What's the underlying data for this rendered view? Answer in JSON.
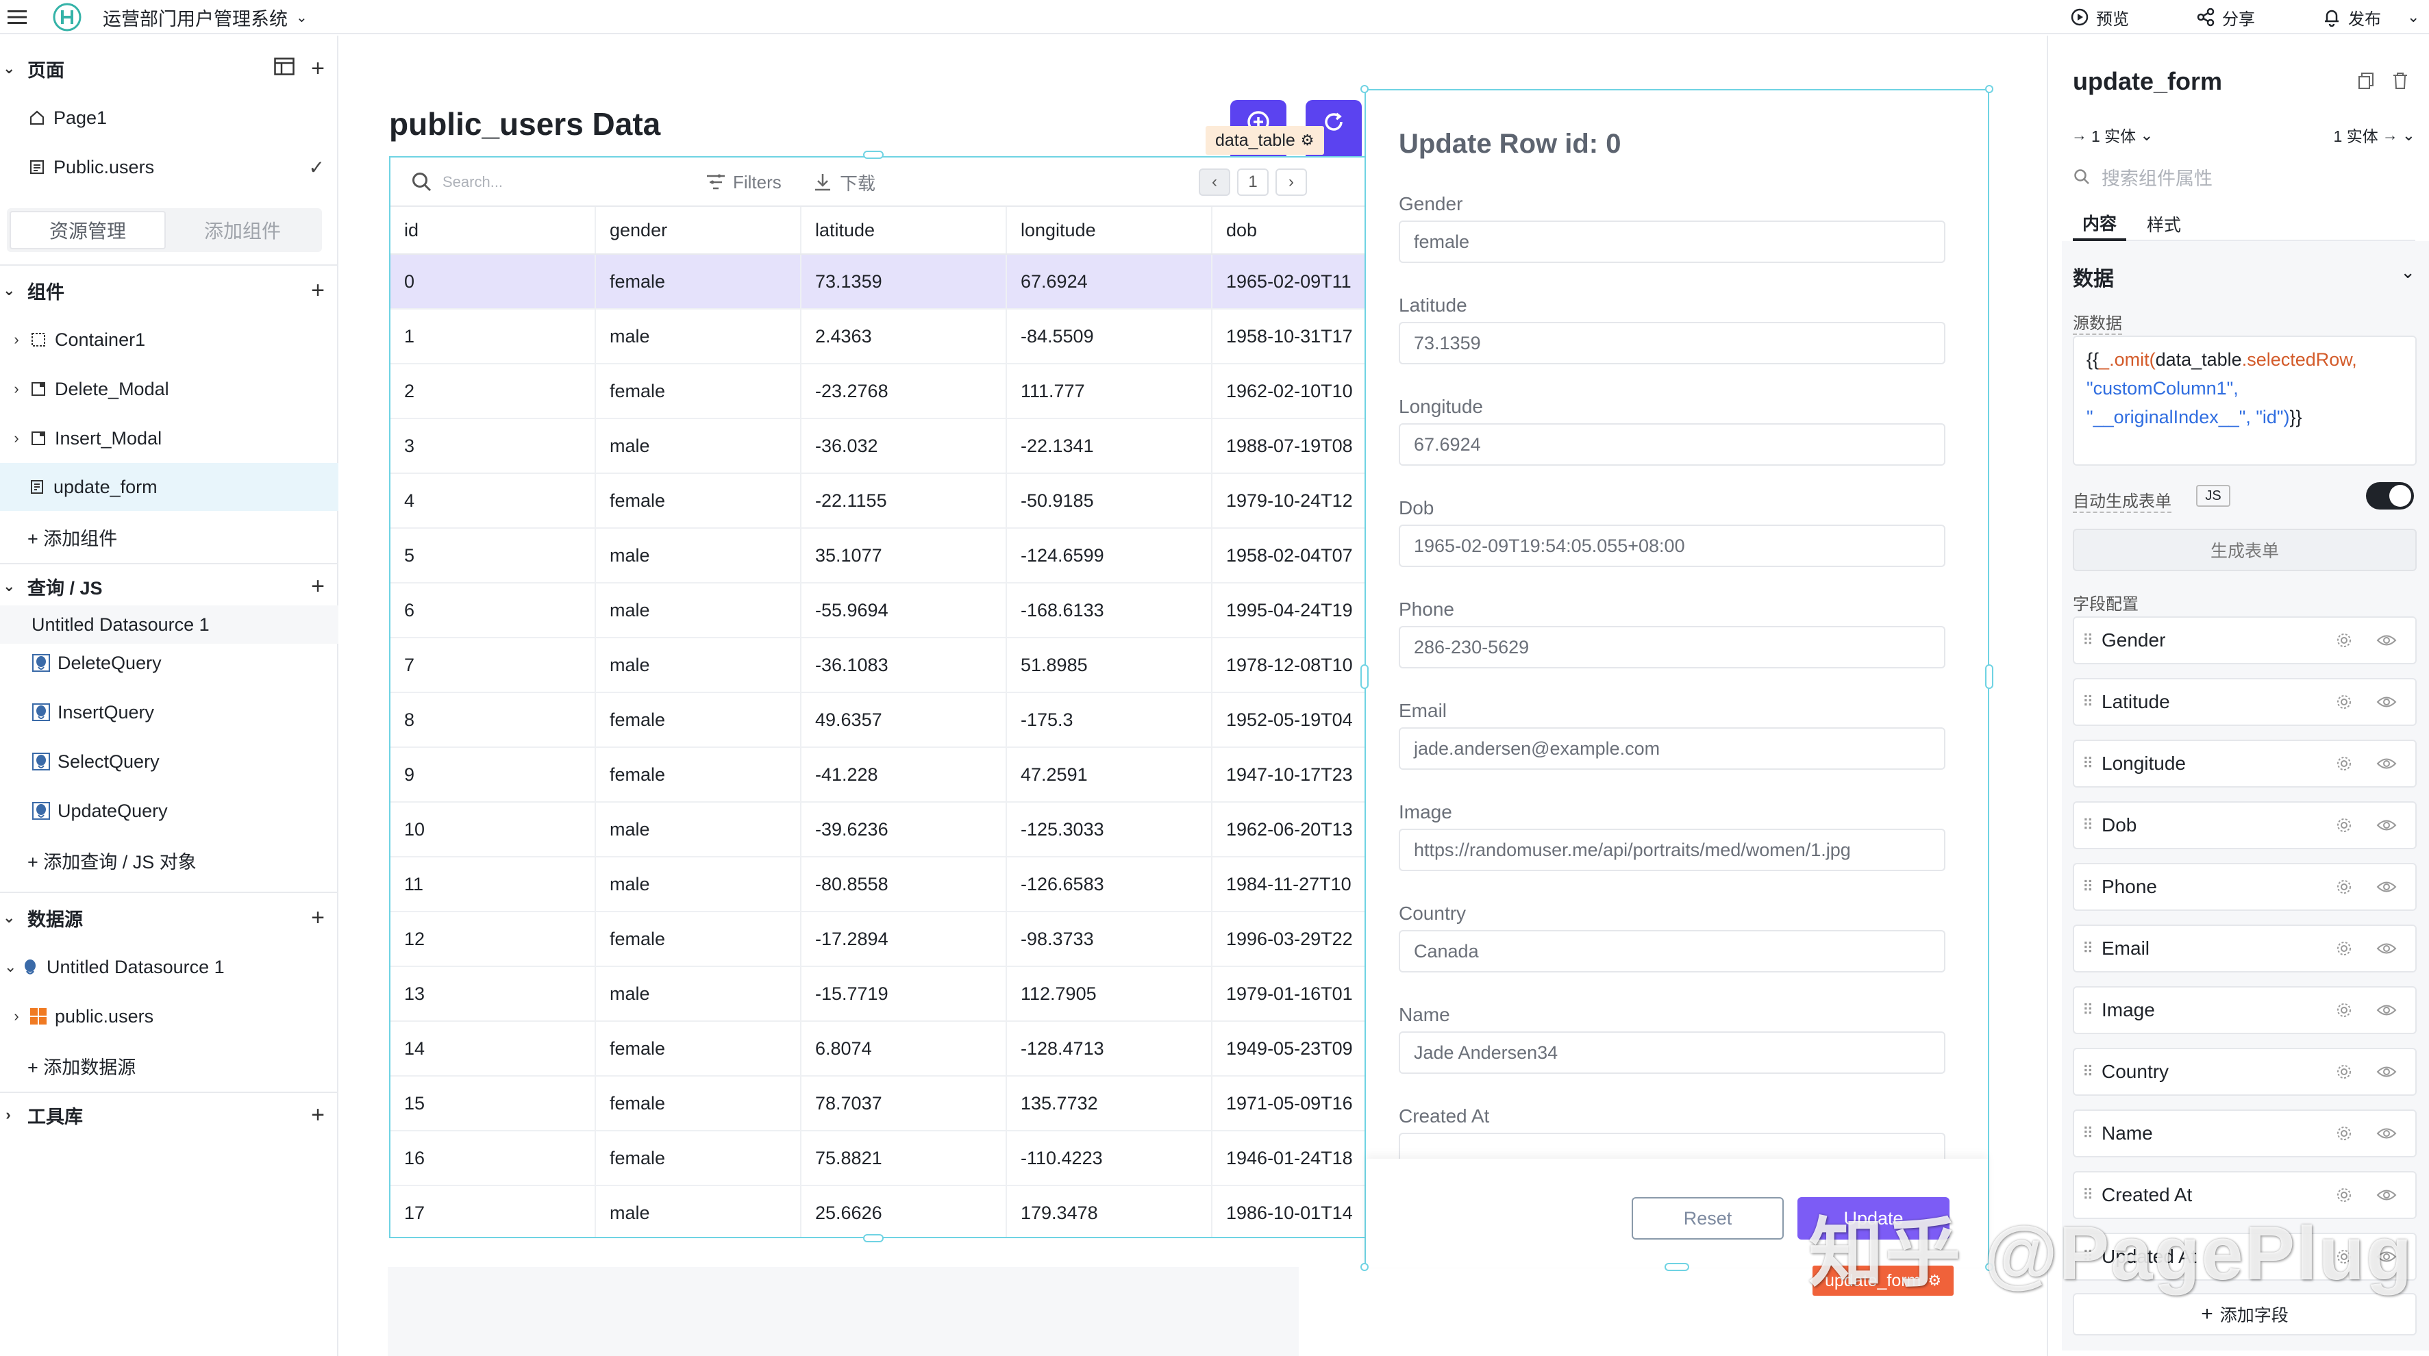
{
  "topbar": {
    "app_title": "运营部门用户管理系统",
    "preview_label": "预览",
    "share_label": "分享",
    "publish_label": "发布"
  },
  "left_panel": {
    "pages_section": "页面",
    "pages": [
      {
        "label": "Page1",
        "icon": "home-icon"
      },
      {
        "label": "Public.users",
        "icon": "table-icon"
      }
    ],
    "tabs": [
      "资源管理",
      "添加组件"
    ],
    "components_section": "组件",
    "components": [
      {
        "label": "Container1",
        "icon": "container-icon"
      },
      {
        "label": "Delete_Modal",
        "icon": "modal-icon"
      },
      {
        "label": "Insert_Modal",
        "icon": "modal-icon"
      },
      {
        "label": "update_form",
        "icon": "form-icon"
      }
    ],
    "add_component": "+ 添加组件",
    "query_section": "查询 / JS",
    "query_group": "Untitled Datasource 1",
    "queries": [
      "DeleteQuery",
      "InsertQuery",
      "SelectQuery",
      "UpdateQuery"
    ],
    "add_query": "+ 添加查询 / JS 对象",
    "datasource_section": "数据源",
    "datasource_name": "Untitled Datasource 1",
    "datasource_table": "public.users",
    "add_datasource": "+ 添加数据源",
    "library_section": "工具库"
  },
  "table": {
    "title": "public_users Data",
    "selection_tag": "data_table",
    "search_placeholder": "Search...",
    "filters_label": "Filters",
    "download_label": "下载",
    "page_number": "1",
    "columns": [
      "id",
      "gender",
      "latitude",
      "longitude",
      "dob"
    ],
    "rows": [
      [
        "0",
        "female",
        "73.1359",
        "67.6924",
        "1965-02-09T11"
      ],
      [
        "1",
        "male",
        "2.4363",
        "-84.5509",
        "1958-10-31T17"
      ],
      [
        "2",
        "female",
        "-23.2768",
        "111.777",
        "1962-02-10T10"
      ],
      [
        "3",
        "male",
        "-36.032",
        "-22.1341",
        "1988-07-19T08"
      ],
      [
        "4",
        "female",
        "-22.1155",
        "-50.9185",
        "1979-10-24T12"
      ],
      [
        "5",
        "male",
        "35.1077",
        "-124.6599",
        "1958-02-04T07"
      ],
      [
        "6",
        "male",
        "-55.9694",
        "-168.6133",
        "1995-04-24T19"
      ],
      [
        "7",
        "male",
        "-36.1083",
        "51.8985",
        "1978-12-08T10"
      ],
      [
        "8",
        "female",
        "49.6357",
        "-175.3",
        "1952-05-19T04"
      ],
      [
        "9",
        "female",
        "-41.228",
        "47.2591",
        "1947-10-17T23"
      ],
      [
        "10",
        "male",
        "-39.6236",
        "-125.3033",
        "1962-06-20T13"
      ],
      [
        "11",
        "male",
        "-80.8558",
        "-126.6583",
        "1984-11-27T10"
      ],
      [
        "12",
        "female",
        "-17.2894",
        "-98.3733",
        "1996-03-29T22"
      ],
      [
        "13",
        "male",
        "-15.7719",
        "112.7905",
        "1979-01-16T01"
      ],
      [
        "14",
        "female",
        "6.8074",
        "-128.4713",
        "1949-05-23T09"
      ],
      [
        "15",
        "female",
        "78.7037",
        "135.7732",
        "1971-05-09T16"
      ],
      [
        "16",
        "female",
        "75.8821",
        "-110.4223",
        "1946-01-24T18"
      ],
      [
        "17",
        "male",
        "25.6626",
        "179.3478",
        "1986-10-01T14"
      ]
    ]
  },
  "form": {
    "title": "Update Row id: 0",
    "selection_tag": "update_form",
    "fields": [
      {
        "label": "Gender",
        "value": "female"
      },
      {
        "label": "Latitude",
        "value": "73.1359"
      },
      {
        "label": "Longitude",
        "value": "67.6924"
      },
      {
        "label": "Dob",
        "value": "1965-02-09T19:54:05.055+08:00"
      },
      {
        "label": "Phone",
        "value": "286-230-5629"
      },
      {
        "label": "Email",
        "value": "jade.andersen@example.com"
      },
      {
        "label": "Image",
        "value": "https://randomuser.me/api/portraits/med/women/1.jpg"
      },
      {
        "label": "Country",
        "value": "Canada"
      },
      {
        "label": "Name",
        "value": "Jade Andersen34"
      },
      {
        "label": "Created At",
        "value": ""
      }
    ],
    "reset_label": "Reset",
    "update_label": "Update"
  },
  "watermark": "知乎 @PagePlug",
  "right_panel": {
    "title": "update_form",
    "entity_in": "1 实体",
    "entity_out": "1 实体",
    "search_placeholder": "搜索组件属性",
    "tabs": [
      "内容",
      "样式"
    ],
    "section": "数据",
    "source_label": "源数据",
    "code": {
      "line1_a": "{{",
      "line1_b": "_.omit(",
      "line1_c": "data_table",
      "line1_d": ".selectedRow,",
      "line2": "\"customColumn1\",",
      "line3_a": "\"__originalIndex__\", \"id\")",
      "line3_b": "}}"
    },
    "auto_label": "自动生成表单",
    "js_badge": "JS",
    "generate_label": "生成表单",
    "fields_label": "字段配置",
    "fields": [
      "Gender",
      "Latitude",
      "Longitude",
      "Dob",
      "Phone",
      "Email",
      "Image",
      "Country",
      "Name",
      "Created At",
      "Updated At"
    ],
    "add_field": "添加字段"
  },
  "colors": {
    "accent_purple": "#5b43f0",
    "selection_cyan": "#6fd3e3",
    "selected_row": "#e5e2fb",
    "form_tag": "#f0623a"
  }
}
